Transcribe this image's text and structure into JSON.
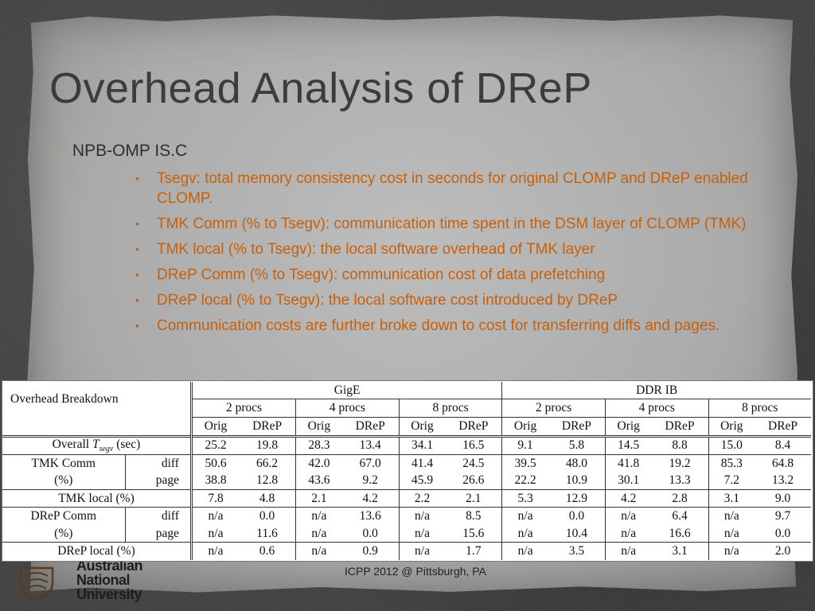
{
  "slide": {
    "title": "Overhead Analysis of DReP",
    "bullet_main": "NPB-OMP IS.C",
    "sub_bullets": [
      "Tsegv: total memory consistency cost in seconds for original CLOMP and DReP enabled CLOMP.",
      "TMK Comm (% to Tsegv): communication time spent in the DSM layer of CLOMP (TMK)",
      "TMK local (% to Tsegv): the local software overhead of TMK layer",
      "DReP Comm (% to Tsegv): communication cost of data prefetching",
      "DReP local (% to Tsegv): the local software cost introduced by DReP",
      "Communication costs are further broke down to cost for transferring diffs and pages."
    ],
    "footer": "ICPP 2012 @ Pittsburgh, PA",
    "logo_lines": [
      "Australian",
      "National",
      "University"
    ]
  },
  "table": {
    "corner": "Overhead Breakdown",
    "networks": [
      "GigE",
      "DDR IB"
    ],
    "procs": [
      "2 procs",
      "4 procs",
      "8 procs",
      "2 procs",
      "4 procs",
      "8 procs"
    ],
    "sub": [
      "Orig",
      "DReP",
      "Orig",
      "DReP",
      "Orig",
      "DReP",
      "Orig",
      "DReP",
      "Orig",
      "DReP",
      "Orig",
      "DReP"
    ],
    "overall_label_pre": "Overall",
    "overall_label_T": "T",
    "overall_label_sub": "segv",
    "overall_label_post": "(sec)",
    "tmk_comm_label_1": "TMK Comm",
    "tmk_comm_label_2": "(%)",
    "tmk_local_label": "TMK local (%)",
    "drep_comm_label_1": "DReP Comm",
    "drep_comm_label_2": "(%)",
    "drep_local_label": "DReP local (%)",
    "diff_label": "diff",
    "page_label": "page",
    "rows": {
      "overall": [
        "25.2",
        "19.8",
        "28.3",
        "13.4",
        "34.1",
        "16.5",
        "9.1",
        "5.8",
        "14.5",
        "8.8",
        "15.0",
        "8.4"
      ],
      "tmk_comm_diff": [
        "50.6",
        "66.2",
        "42.0",
        "67.0",
        "41.4",
        "24.5",
        "39.5",
        "48.0",
        "41.8",
        "19.2",
        "85.3",
        "64.8"
      ],
      "tmk_comm_page": [
        "38.8",
        "12.8",
        "43.6",
        "9.2",
        "45.9",
        "26.6",
        "22.2",
        "10.9",
        "30.1",
        "13.3",
        "7.2",
        "13.2"
      ],
      "tmk_local": [
        "7.8",
        "4.8",
        "2.1",
        "4.2",
        "2.2",
        "2.1",
        "5.3",
        "12.9",
        "4.2",
        "2.8",
        "3.1",
        "9.0"
      ],
      "drep_comm_diff": [
        "n/a",
        "0.0",
        "n/a",
        "13.6",
        "n/a",
        "8.5",
        "n/a",
        "0.0",
        "n/a",
        "6.4",
        "n/a",
        "9.7"
      ],
      "drep_comm_page": [
        "n/a",
        "11.6",
        "n/a",
        "0.0",
        "n/a",
        "15.6",
        "n/a",
        "10.4",
        "n/a",
        "16.6",
        "n/a",
        "0.0"
      ],
      "drep_local": [
        "n/a",
        "0.6",
        "n/a",
        "0.9",
        "n/a",
        "1.7",
        "n/a",
        "3.5",
        "n/a",
        "3.1",
        "n/a",
        "2.0"
      ]
    }
  },
  "colors": {
    "accent": "#c8600b",
    "bullet": "#d98b3a",
    "title": "#3c3c3c"
  }
}
